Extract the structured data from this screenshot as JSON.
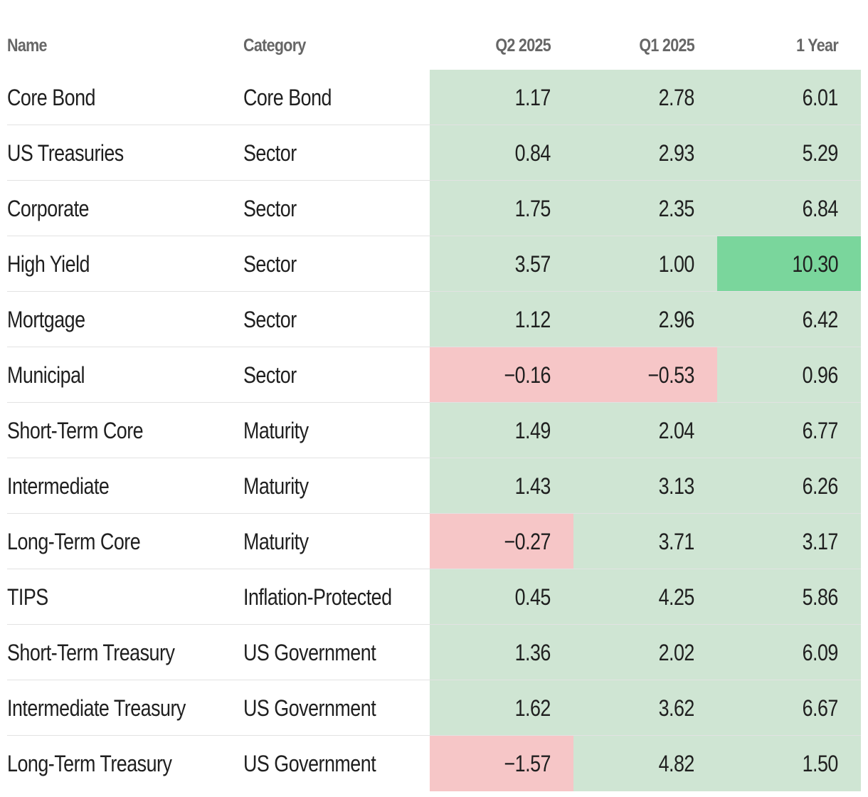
{
  "chart_data": {
    "type": "table",
    "columns": [
      "Name",
      "Category",
      "Q2 2025",
      "Q1 2025",
      "1 Year"
    ],
    "rows": [
      {
        "name": "Core Bond",
        "category": "Core Bond",
        "q2_2025": "1.17",
        "q1_2025": "2.78",
        "one_year": "6.01"
      },
      {
        "name": "US Treasuries",
        "category": "Sector",
        "q2_2025": "0.84",
        "q1_2025": "2.93",
        "one_year": "5.29"
      },
      {
        "name": "Corporate",
        "category": "Sector",
        "q2_2025": "1.75",
        "q1_2025": "2.35",
        "one_year": "6.84"
      },
      {
        "name": "High Yield",
        "category": "Sector",
        "q2_2025": "3.57",
        "q1_2025": "1.00",
        "one_year": "10.30"
      },
      {
        "name": "Mortgage",
        "category": "Sector",
        "q2_2025": "1.12",
        "q1_2025": "2.96",
        "one_year": "6.42"
      },
      {
        "name": "Municipal",
        "category": "Sector",
        "q2_2025": "−0.16",
        "q1_2025": "−0.53",
        "one_year": "0.96"
      },
      {
        "name": "Short-Term Core",
        "category": "Maturity",
        "q2_2025": "1.49",
        "q1_2025": "2.04",
        "one_year": "6.77"
      },
      {
        "name": "Intermediate",
        "category": "Maturity",
        "q2_2025": "1.43",
        "q1_2025": "3.13",
        "one_year": "6.26"
      },
      {
        "name": "Long-Term Core",
        "category": "Maturity",
        "q2_2025": "−0.27",
        "q1_2025": "3.71",
        "one_year": "3.17"
      },
      {
        "name": "TIPS",
        "category": "Inflation-Protected",
        "q2_2025": "0.45",
        "q1_2025": "4.25",
        "one_year": "5.86"
      },
      {
        "name": "Short-Term Treasury",
        "category": "US Government",
        "q2_2025": "1.36",
        "q1_2025": "2.02",
        "one_year": "6.09"
      },
      {
        "name": "Intermediate Treasury",
        "category": "US Government",
        "q2_2025": "1.62",
        "q1_2025": "3.62",
        "one_year": "6.67"
      },
      {
        "name": "Long-Term Treasury",
        "category": "US Government",
        "q2_2025": "−1.57",
        "q1_2025": "4.82",
        "one_year": "1.50"
      }
    ],
    "colors": {
      "positive": "#cfe5d3",
      "negative": "#f6c6c7",
      "highlight": "#7ad69c",
      "highlight_threshold": 10
    }
  }
}
